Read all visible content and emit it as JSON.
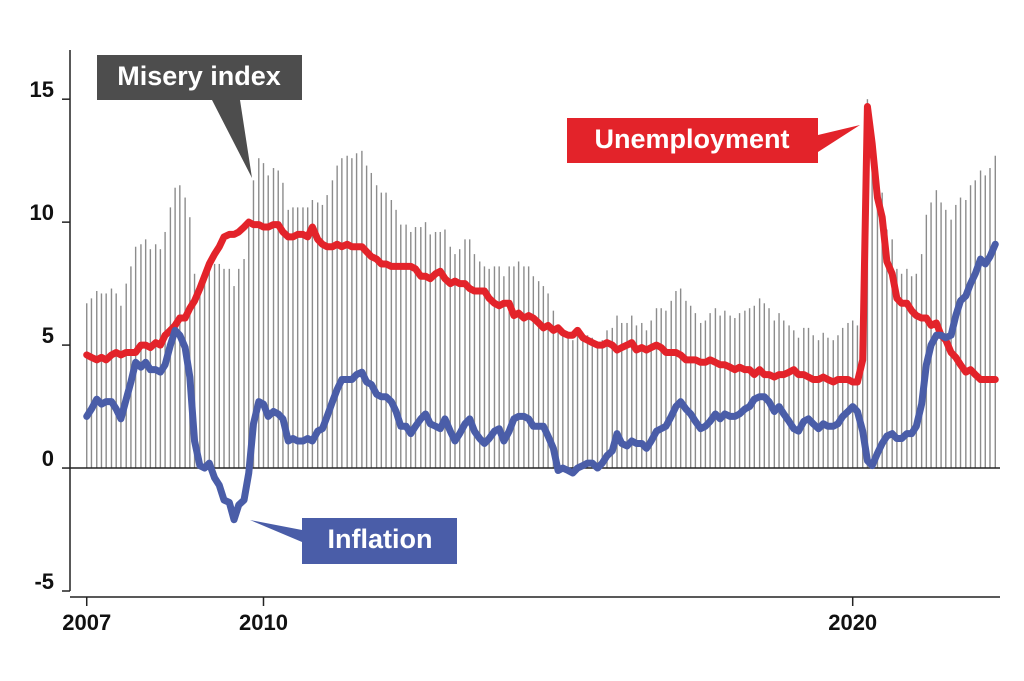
{
  "chart_data": {
    "type": "combo",
    "x": [
      2007,
      2007.08,
      2007.17,
      2007.25,
      2007.33,
      2007.42,
      2007.5,
      2007.58,
      2007.67,
      2007.75,
      2007.83,
      2007.92,
      2008,
      2008.08,
      2008.17,
      2008.25,
      2008.33,
      2008.42,
      2008.5,
      2008.58,
      2008.67,
      2008.75,
      2008.83,
      2008.92,
      2009,
      2009.08,
      2009.17,
      2009.25,
      2009.33,
      2009.42,
      2009.5,
      2009.58,
      2009.67,
      2009.75,
      2009.83,
      2009.92,
      2010,
      2010.08,
      2010.17,
      2010.25,
      2010.33,
      2010.42,
      2010.5,
      2010.58,
      2010.67,
      2010.75,
      2010.83,
      2010.92,
      2011,
      2011.08,
      2011.17,
      2011.25,
      2011.33,
      2011.42,
      2011.5,
      2011.58,
      2011.67,
      2011.75,
      2011.83,
      2011.92,
      2012,
      2012.08,
      2012.17,
      2012.25,
      2012.33,
      2012.42,
      2012.5,
      2012.58,
      2012.67,
      2012.75,
      2012.83,
      2012.92,
      2013,
      2013.08,
      2013.17,
      2013.25,
      2013.33,
      2013.42,
      2013.5,
      2013.58,
      2013.67,
      2013.75,
      2013.83,
      2013.92,
      2014,
      2014.08,
      2014.17,
      2014.25,
      2014.33,
      2014.42,
      2014.5,
      2014.58,
      2014.67,
      2014.75,
      2014.83,
      2014.92,
      2015,
      2015.08,
      2015.17,
      2015.25,
      2015.33,
      2015.42,
      2015.5,
      2015.58,
      2015.67,
      2015.75,
      2015.83,
      2015.92,
      2016,
      2016.08,
      2016.17,
      2016.25,
      2016.33,
      2016.42,
      2016.5,
      2016.58,
      2016.67,
      2016.75,
      2016.83,
      2016.92,
      2017,
      2017.08,
      2017.17,
      2017.25,
      2017.33,
      2017.42,
      2017.5,
      2017.58,
      2017.67,
      2017.75,
      2017.83,
      2017.92,
      2018,
      2018.08,
      2018.17,
      2018.25,
      2018.33,
      2018.42,
      2018.5,
      2018.58,
      2018.67,
      2018.75,
      2018.83,
      2018.92,
      2019,
      2019.08,
      2019.17,
      2019.25,
      2019.33,
      2019.42,
      2019.5,
      2019.58,
      2019.67,
      2019.75,
      2019.83,
      2019.92,
      2020,
      2020.08,
      2020.17,
      2020.25,
      2020.33,
      2020.42,
      2020.5,
      2020.58,
      2020.67,
      2020.75,
      2020.83,
      2020.92,
      2021,
      2021.08,
      2021.17,
      2021.25,
      2021.33,
      2021.42,
      2021.5,
      2021.58,
      2021.67,
      2021.75,
      2021.83,
      2021.92,
      2022,
      2022.08,
      2022.17,
      2022.25,
      2022.33,
      2022.42
    ],
    "series": [
      {
        "name": "Misery index",
        "type": "bar",
        "color": "#8c8c8c",
        "values": [
          6.7,
          6.9,
          7.2,
          7.1,
          7.1,
          7.3,
          7.1,
          6.6,
          7.5,
          8.2,
          9.0,
          9.1,
          9.3,
          8.9,
          9.1,
          8.9,
          9.6,
          10.6,
          11.4,
          11.5,
          11.0,
          10.2,
          7.9,
          7.4,
          7.8,
          8.5,
          8.3,
          8.3,
          8.1,
          8.1,
          7.4,
          8.1,
          8.5,
          9.8,
          11.7,
          12.6,
          12.4,
          11.9,
          12.2,
          12.1,
          11.6,
          10.5,
          10.6,
          10.6,
          10.6,
          10.6,
          10.9,
          10.8,
          10.7,
          11.1,
          11.7,
          12.3,
          12.6,
          12.7,
          12.6,
          12.8,
          12.9,
          12.3,
          12.0,
          11.5,
          11.2,
          11.2,
          10.9,
          10.5,
          9.9,
          9.9,
          9.6,
          9.8,
          9.8,
          10.0,
          9.5,
          9.6,
          9.6,
          9.7,
          9.0,
          8.7,
          8.9,
          9.3,
          9.3,
          8.7,
          8.4,
          8.2,
          8.1,
          8.2,
          8.2,
          7.8,
          8.2,
          8.2,
          8.4,
          8.2,
          8.2,
          7.8,
          7.6,
          7.4,
          7.1,
          6.4,
          5.6,
          5.5,
          5.3,
          5.2,
          5.6,
          5.4,
          5.4,
          5.3,
          5.0,
          5.2,
          5.6,
          5.7,
          6.2,
          5.9,
          5.9,
          6.2,
          5.8,
          5.9,
          5.6,
          6.0,
          6.5,
          6.5,
          6.4,
          6.8,
          7.2,
          7.3,
          6.8,
          6.6,
          6.3,
          5.9,
          6.0,
          6.3,
          6.5,
          6.2,
          6.4,
          6.2,
          6.1,
          6.3,
          6.4,
          6.5,
          6.6,
          6.9,
          6.7,
          6.5,
          6.0,
          6.3,
          6.0,
          5.8,
          5.6,
          5.3,
          5.7,
          5.7,
          5.4,
          5.2,
          5.5,
          5.3,
          5.2,
          5.4,
          5.7,
          5.9,
          6.0,
          5.8,
          5.9,
          15.0,
          13.3,
          11.6,
          11.2,
          9.7,
          9.3,
          8.1,
          7.9,
          8.1,
          7.8,
          7.9,
          8.7,
          10.3,
          10.8,
          11.3,
          10.8,
          10.5,
          10.1,
          10.7,
          11.0,
          10.9,
          11.5,
          11.7,
          12.1,
          11.9,
          12.2,
          12.7
        ]
      },
      {
        "name": "Unemployment",
        "type": "line",
        "color": "#e3232a",
        "values": [
          4.6,
          4.5,
          4.4,
          4.5,
          4.4,
          4.6,
          4.7,
          4.6,
          4.7,
          4.7,
          4.7,
          5.0,
          5.0,
          4.9,
          5.1,
          5.0,
          5.4,
          5.6,
          5.8,
          6.1,
          6.1,
          6.5,
          6.8,
          7.3,
          7.8,
          8.3,
          8.7,
          9.0,
          9.4,
          9.5,
          9.5,
          9.6,
          9.8,
          10.0,
          9.9,
          9.9,
          9.8,
          9.8,
          9.9,
          9.9,
          9.6,
          9.4,
          9.4,
          9.5,
          9.5,
          9.4,
          9.8,
          9.3,
          9.1,
          9.0,
          9.0,
          9.1,
          9.0,
          9.1,
          9.0,
          9.0,
          9.0,
          8.8,
          8.6,
          8.5,
          8.3,
          8.3,
          8.2,
          8.2,
          8.2,
          8.2,
          8.2,
          8.1,
          7.8,
          7.8,
          7.7,
          7.9,
          8.0,
          7.7,
          7.5,
          7.6,
          7.5,
          7.5,
          7.3,
          7.2,
          7.2,
          7.2,
          6.9,
          6.7,
          6.6,
          6.7,
          6.7,
          6.2,
          6.3,
          6.1,
          6.2,
          6.1,
          5.9,
          5.7,
          5.8,
          5.6,
          5.7,
          5.5,
          5.4,
          5.4,
          5.6,
          5.3,
          5.2,
          5.1,
          5.0,
          5.0,
          5.1,
          5.0,
          4.8,
          4.9,
          5.0,
          5.1,
          4.8,
          4.9,
          4.8,
          4.9,
          5.0,
          4.9,
          4.7,
          4.7,
          4.7,
          4.6,
          4.4,
          4.4,
          4.4,
          4.3,
          4.3,
          4.4,
          4.3,
          4.2,
          4.2,
          4.1,
          4.0,
          4.1,
          4.0,
          4.0,
          3.8,
          4.0,
          3.8,
          3.8,
          3.7,
          3.8,
          3.8,
          3.9,
          4.0,
          3.8,
          3.8,
          3.7,
          3.6,
          3.6,
          3.7,
          3.6,
          3.5,
          3.6,
          3.6,
          3.6,
          3.5,
          3.5,
          4.4,
          14.7,
          13.2,
          11.0,
          10.2,
          8.4,
          7.9,
          6.9,
          6.7,
          6.7,
          6.4,
          6.2,
          6.1,
          6.1,
          5.8,
          5.9,
          5.4,
          5.2,
          4.7,
          4.5,
          4.2,
          3.9,
          4.0,
          3.8,
          3.6,
          3.6,
          3.6,
          3.6
        ]
      },
      {
        "name": "Inflation",
        "type": "line",
        "color": "#4a5da8",
        "values": [
          2.1,
          2.4,
          2.8,
          2.6,
          2.7,
          2.7,
          2.4,
          2.0,
          2.8,
          3.5,
          4.3,
          4.1,
          4.3,
          4.0,
          4.0,
          3.9,
          4.2,
          5.0,
          5.6,
          5.4,
          4.9,
          3.7,
          1.1,
          0.1,
          0.0,
          0.2,
          -0.4,
          -0.7,
          -1.3,
          -1.4,
          -2.1,
          -1.5,
          -1.3,
          -0.2,
          1.8,
          2.7,
          2.6,
          2.1,
          2.3,
          2.2,
          2.0,
          1.1,
          1.2,
          1.1,
          1.1,
          1.2,
          1.1,
          1.5,
          1.6,
          2.1,
          2.7,
          3.2,
          3.6,
          3.6,
          3.6,
          3.8,
          3.9,
          3.5,
          3.4,
          3.0,
          2.9,
          2.9,
          2.7,
          2.3,
          1.7,
          1.7,
          1.4,
          1.7,
          2.0,
          2.2,
          1.8,
          1.7,
          1.6,
          2.0,
          1.5,
          1.1,
          1.4,
          1.8,
          2.0,
          1.5,
          1.2,
          1.0,
          1.2,
          1.5,
          1.6,
          1.1,
          1.5,
          2.0,
          2.1,
          2.1,
          2.0,
          1.7,
          1.7,
          1.7,
          1.3,
          0.8,
          -0.1,
          0.0,
          -0.1,
          -0.2,
          0.0,
          0.1,
          0.2,
          0.2,
          0.0,
          0.2,
          0.5,
          0.7,
          1.4,
          1.0,
          0.9,
          1.1,
          1.0,
          1.0,
          0.8,
          1.1,
          1.5,
          1.6,
          1.7,
          2.1,
          2.5,
          2.7,
          2.4,
          2.2,
          1.9,
          1.6,
          1.7,
          1.9,
          2.2,
          2.0,
          2.2,
          2.1,
          2.1,
          2.2,
          2.4,
          2.5,
          2.8,
          2.9,
          2.9,
          2.7,
          2.3,
          2.5,
          2.2,
          1.9,
          1.6,
          1.5,
          1.9,
          2.0,
          1.8,
          1.6,
          1.8,
          1.7,
          1.7,
          1.8,
          2.1,
          2.3,
          2.5,
          2.3,
          1.5,
          0.3,
          0.1,
          0.6,
          1.0,
          1.3,
          1.4,
          1.2,
          1.2,
          1.4,
          1.4,
          1.7,
          2.6,
          4.2,
          5.0,
          5.4,
          5.4,
          5.3,
          5.4,
          6.2,
          6.8,
          7.0,
          7.5,
          7.9,
          8.5,
          8.3,
          8.6,
          9.1
        ]
      }
    ],
    "xlim": [
      2006.75,
      2022.5
    ],
    "xticks": [
      2007,
      2010,
      2020
    ],
    "ylim": [
      -5,
      17
    ],
    "yticks": [
      -5,
      0,
      5,
      10,
      15
    ]
  }
}
